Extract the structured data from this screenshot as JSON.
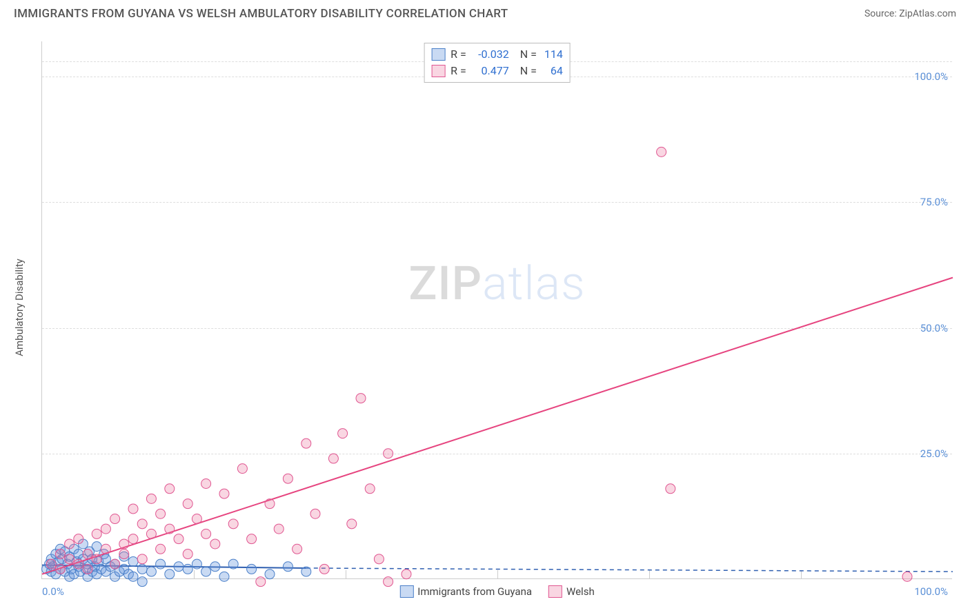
{
  "header": {
    "title": "IMMIGRANTS FROM GUYANA VS WELSH AMBULATORY DISABILITY CORRELATION CHART",
    "source_prefix": "Source: ",
    "source_name": "ZipAtlas.com"
  },
  "watermark": {
    "bold": "ZIP",
    "light": "atlas"
  },
  "chart": {
    "type": "scatter",
    "xlim": [
      0,
      100
    ],
    "ylim": [
      0,
      107
    ],
    "x_ticks_major": [
      0,
      100
    ],
    "x_ticks_minor": [
      16.67,
      33.33,
      50,
      66.67,
      83.33
    ],
    "y_ticks": [
      25,
      50,
      75,
      100
    ],
    "y_tick_labels": [
      "25.0%",
      "50.0%",
      "75.0%",
      "100.0%"
    ],
    "x_tick_labels": {
      "left": "0.0%",
      "right": "100.0%"
    },
    "ylabel": "Ambulatory Disability",
    "grid_color": "#dddddd",
    "axis_color": "#cccccc",
    "background_color": "#ffffff",
    "tick_font_color": "#5a8fd6",
    "marker_radius": 7,
    "marker_stroke_width": 1,
    "series": [
      {
        "name": "Immigrants from Guyana",
        "color_fill": "rgba(100,150,220,0.35)",
        "color_stroke": "#4a7fc8",
        "R": "-0.032",
        "N": "114",
        "trend": {
          "x1": 0,
          "y1": 2.8,
          "x2": 29,
          "y2": 2.2,
          "dash_x2": 100,
          "dash_y2": 1.5,
          "stroke": "#2f5fb0",
          "width": 2
        },
        "points": [
          [
            0.5,
            2
          ],
          [
            0.8,
            3
          ],
          [
            1,
            1.5
          ],
          [
            1,
            4
          ],
          [
            1.2,
            2.5
          ],
          [
            1.5,
            5
          ],
          [
            1.5,
            1
          ],
          [
            1.8,
            3.5
          ],
          [
            2,
            2
          ],
          [
            2,
            6
          ],
          [
            2.2,
            4
          ],
          [
            2.5,
            1.5
          ],
          [
            2.5,
            5.5
          ],
          [
            2.8,
            3
          ],
          [
            3,
            0.5
          ],
          [
            3,
            4.5
          ],
          [
            3.2,
            2
          ],
          [
            3.5,
            6
          ],
          [
            3.5,
            1
          ],
          [
            3.8,
            3.5
          ],
          [
            4,
            2.5
          ],
          [
            4,
            5
          ],
          [
            4.2,
            1.5
          ],
          [
            4.5,
            4
          ],
          [
            4.5,
            7
          ],
          [
            4.8,
            2
          ],
          [
            5,
            3
          ],
          [
            5,
            0.5
          ],
          [
            5.2,
            5.5
          ],
          [
            5.5,
            1.5
          ],
          [
            5.5,
            4
          ],
          [
            5.8,
            2.5
          ],
          [
            6,
            6.5
          ],
          [
            6,
            1
          ],
          [
            6.2,
            3.5
          ],
          [
            6.5,
            2
          ],
          [
            6.8,
            5
          ],
          [
            7,
            1.5
          ],
          [
            7,
            4
          ],
          [
            7.5,
            2.5
          ],
          [
            8,
            0.5
          ],
          [
            8,
            3
          ],
          [
            8.5,
            1.5
          ],
          [
            9,
            4.5
          ],
          [
            9,
            2
          ],
          [
            9.5,
            1
          ],
          [
            10,
            3.5
          ],
          [
            10,
            0.5
          ],
          [
            11,
            2
          ],
          [
            11,
            -0.5
          ],
          [
            12,
            1.5
          ],
          [
            13,
            3
          ],
          [
            14,
            1
          ],
          [
            15,
            2.5
          ],
          [
            16,
            2
          ],
          [
            17,
            3
          ],
          [
            18,
            1.5
          ],
          [
            19,
            2.5
          ],
          [
            20,
            0.5
          ],
          [
            21,
            3
          ],
          [
            23,
            2
          ],
          [
            25,
            1
          ],
          [
            27,
            2.5
          ],
          [
            29,
            1.5
          ]
        ]
      },
      {
        "name": "Welsh",
        "color_fill": "rgba(235,120,160,0.30)",
        "color_stroke": "#e05590",
        "R": "0.477",
        "N": "64",
        "trend": {
          "x1": 0,
          "y1": 1,
          "x2": 100,
          "y2": 60,
          "stroke": "#e6447f",
          "width": 2
        },
        "points": [
          [
            1,
            3
          ],
          [
            2,
            2
          ],
          [
            2,
            5
          ],
          [
            3,
            4
          ],
          [
            3,
            7
          ],
          [
            4,
            3
          ],
          [
            4,
            8
          ],
          [
            5,
            5
          ],
          [
            5,
            2
          ],
          [
            6,
            9
          ],
          [
            6,
            4
          ],
          [
            7,
            6
          ],
          [
            7,
            10
          ],
          [
            8,
            3
          ],
          [
            8,
            12
          ],
          [
            9,
            7
          ],
          [
            9,
            5
          ],
          [
            10,
            14
          ],
          [
            10,
            8
          ],
          [
            11,
            4
          ],
          [
            11,
            11
          ],
          [
            12,
            9
          ],
          [
            12,
            16
          ],
          [
            13,
            6
          ],
          [
            13,
            13
          ],
          [
            14,
            10
          ],
          [
            14,
            18
          ],
          [
            15,
            8
          ],
          [
            16,
            15
          ],
          [
            16,
            5
          ],
          [
            17,
            12
          ],
          [
            18,
            9
          ],
          [
            18,
            19
          ],
          [
            19,
            7
          ],
          [
            20,
            17
          ],
          [
            21,
            11
          ],
          [
            22,
            22
          ],
          [
            23,
            8
          ],
          [
            24,
            -0.5
          ],
          [
            25,
            15
          ],
          [
            26,
            10
          ],
          [
            27,
            20
          ],
          [
            28,
            6
          ],
          [
            29,
            27
          ],
          [
            30,
            13
          ],
          [
            31,
            2
          ],
          [
            32,
            24
          ],
          [
            33,
            29
          ],
          [
            34,
            11
          ],
          [
            35,
            36
          ],
          [
            36,
            18
          ],
          [
            37,
            4
          ],
          [
            38,
            25
          ],
          [
            38,
            -0.5
          ],
          [
            40,
            1
          ],
          [
            48,
            105
          ],
          [
            51,
            103
          ],
          [
            68,
            85
          ],
          [
            69,
            18
          ],
          [
            95,
            0.5
          ]
        ]
      }
    ],
    "legend_corr": {
      "R_label": "R =",
      "N_label": "N ="
    },
    "legend_bottom": [
      {
        "swatch_fill": "rgba(100,150,220,0.35)",
        "swatch_stroke": "#4a7fc8",
        "label": "Immigrants from Guyana"
      },
      {
        "swatch_fill": "rgba(235,120,160,0.30)",
        "swatch_stroke": "#e05590",
        "label": "Welsh"
      }
    ]
  }
}
